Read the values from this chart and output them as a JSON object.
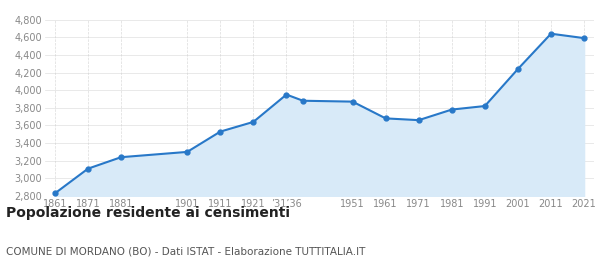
{
  "years": [
    1861,
    1871,
    1881,
    1901,
    1911,
    1921,
    1931,
    1936,
    1951,
    1961,
    1971,
    1981,
    1991,
    2001,
    2011,
    2021
  ],
  "population": [
    2830,
    3110,
    3240,
    3300,
    3530,
    3640,
    3950,
    3880,
    3870,
    3680,
    3660,
    3780,
    3820,
    4240,
    4640,
    4590
  ],
  "ylim": [
    2800,
    4800
  ],
  "yticks": [
    2800,
    3000,
    3200,
    3400,
    3600,
    3800,
    4000,
    4200,
    4400,
    4600,
    4800
  ],
  "line_color": "#2878c8",
  "fill_color": "#d8eaf8",
  "marker_color": "#2878c8",
  "background_color": "#ffffff",
  "grid_color": "#cccccc",
  "title": "Popolazione residente ai censimenti",
  "subtitle": "COMUNE DI MORDANO (BO) - Dati ISTAT - Elaborazione TUTTITALIA.IT",
  "title_fontsize": 10,
  "subtitle_fontsize": 7.5,
  "tick_fontsize": 7,
  "title_color": "#222222",
  "subtitle_color": "#555555",
  "tick_color": "#888888",
  "x_tick_positions": [
    1861,
    1871,
    1881,
    1901,
    1911,
    1921,
    1931,
    1951,
    1961,
    1971,
    1981,
    1991,
    2001,
    2011,
    2021
  ],
  "x_tick_labels": [
    "1861",
    "1871",
    "1881",
    "1901",
    "1911",
    "1921",
    "’31’36",
    "1951",
    "1961",
    "1971",
    "1981",
    "1991",
    "2001",
    "2011",
    "2021"
  ]
}
